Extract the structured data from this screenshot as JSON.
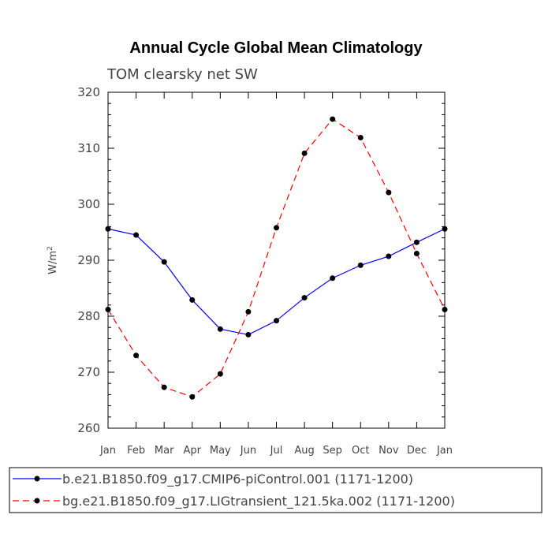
{
  "chart_data": {
    "type": "line",
    "title": "Annual Cycle Global Mean Climatology",
    "subtitle": "TOM clearsky net SW",
    "ylabel": "W/m",
    "ylabel_superscript": "2",
    "ylim": [
      260,
      320
    ],
    "yticks": [
      "260",
      "270",
      "280",
      "290",
      "300",
      "310",
      "320"
    ],
    "categories": [
      "Jan",
      "Feb",
      "Mar",
      "Apr",
      "May",
      "Jun",
      "Jul",
      "Aug",
      "Sep",
      "Oct",
      "Nov",
      "Dec",
      "Jan"
    ],
    "series": [
      {
        "name": "b.e21.B1850.f09_g17.CMIP6-piControl.001 (1171-1200)",
        "color": "#0000ff",
        "dash": "solid",
        "values": [
          295.6,
          294.5,
          289.7,
          282.9,
          277.7,
          276.7,
          279.2,
          283.3,
          286.8,
          289.1,
          290.7,
          293.2,
          295.6
        ]
      },
      {
        "name": "bg.e21.B1850.f09_g17.LIGtransient_121.5ka.002 (1171-1200)",
        "color": "#ff0000",
        "dash": "dashed",
        "values": [
          281.2,
          273.0,
          267.3,
          265.6,
          269.7,
          280.8,
          295.8,
          309.1,
          315.2,
          311.9,
          302.1,
          291.2,
          281.2
        ]
      }
    ]
  }
}
